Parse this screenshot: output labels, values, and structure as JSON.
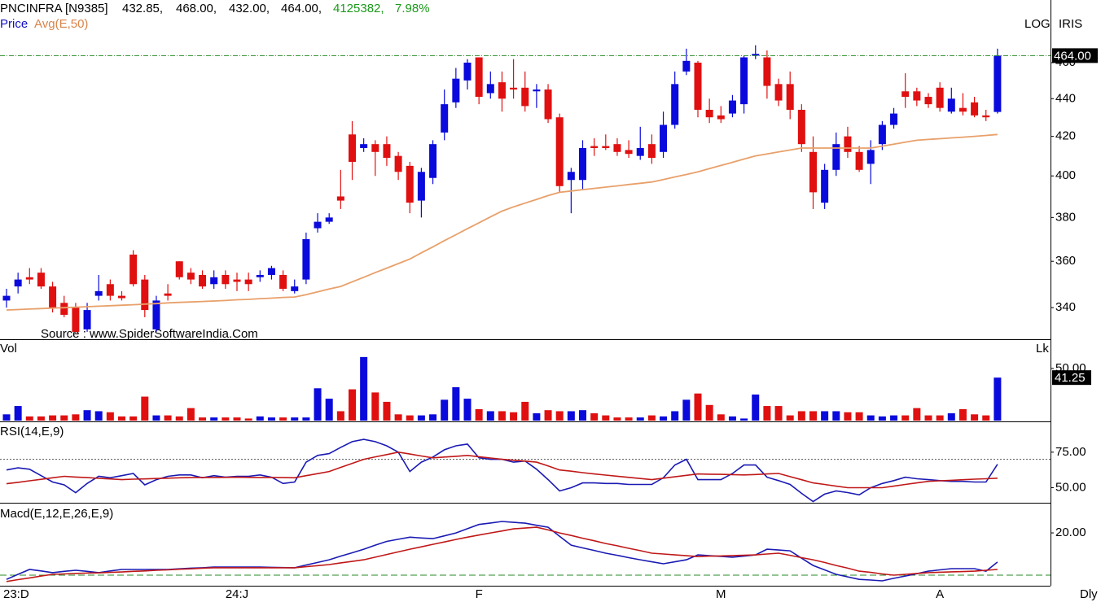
{
  "chart_data": [
    {
      "type": "candlestick",
      "title": "PNCINFRA [N9385]",
      "quote": [
        "432.85,",
        "468.00,",
        "432.00,",
        "464.00,",
        "4125382,",
        "7.98%"
      ],
      "series_label": "Price",
      "scale_label": "LOG",
      "theme_label": "IRIS",
      "period": "Dly",
      "annotation": "Source : www.SpiderSoftwareIndia.Com",
      "log": true,
      "up_color": "#0a0adc",
      "down_color": "#e01010",
      "categories": [
        "23:D",
        null,
        null,
        null,
        null,
        null,
        null,
        null,
        null,
        null,
        null,
        null,
        null,
        null,
        null,
        null,
        null,
        null,
        null,
        null,
        "24:J",
        null,
        null,
        null,
        null,
        null,
        null,
        null,
        null,
        null,
        null,
        null,
        null,
        null,
        null,
        null,
        null,
        null,
        null,
        null,
        null,
        "F",
        null,
        null,
        null,
        null,
        null,
        null,
        null,
        null,
        null,
        null,
        null,
        null,
        null,
        null,
        null,
        null,
        null,
        null,
        null,
        null,
        "M",
        null,
        null,
        null,
        null,
        null,
        null,
        null,
        null,
        null,
        null,
        null,
        null,
        null,
        null,
        null,
        null,
        null,
        null,
        "A",
        null,
        null,
        null,
        null,
        null
      ],
      "open": [
        343,
        349,
        353,
        355,
        349,
        342,
        340,
        331,
        345,
        350,
        345,
        363,
        352,
        331,
        346,
        360,
        355,
        354,
        350,
        354,
        352,
        352,
        353,
        354,
        354,
        347,
        352,
        375,
        378,
        390,
        421,
        414,
        416,
        416,
        410,
        405,
        388,
        399,
        422,
        438,
        450,
        463,
        443,
        449,
        446,
        446,
        444,
        445,
        430,
        398,
        398,
        415,
        415,
        416,
        413,
        410,
        416,
        412,
        426,
        455,
        460,
        434,
        431,
        432,
        437,
        464,
        463,
        448,
        448,
        434,
        412,
        387,
        403,
        420,
        412,
        406,
        416,
        426,
        444,
        444,
        441,
        446,
        433,
        435,
        438,
        431,
        432.85
      ],
      "high": [
        348,
        355,
        357,
        357,
        351,
        345,
        342,
        342,
        354,
        352,
        347,
        365,
        354,
        345,
        350,
        360,
        357,
        356,
        356,
        356,
        355,
        355,
        356,
        358,
        356,
        352,
        373,
        382,
        382,
        403,
        428,
        419,
        418,
        420,
        412,
        407,
        404,
        418,
        445,
        457,
        462,
        463,
        455,
        455,
        462,
        455,
        448,
        448,
        432,
        404,
        418,
        419,
        421,
        419,
        418,
        425,
        421,
        433,
        455,
        468,
        461,
        440,
        436,
        442,
        464,
        470,
        467,
        451,
        455,
        437,
        420,
        406,
        422,
        425,
        415,
        418,
        428,
        435,
        454,
        446,
        443,
        449,
        446,
        443,
        441,
        434,
        468
      ],
      "low": [
        340,
        346,
        350,
        348,
        338,
        336,
        329,
        330,
        343,
        343,
        343,
        349,
        336,
        330,
        343,
        352,
        350,
        348,
        348,
        348,
        347,
        347,
        351,
        352,
        347,
        346,
        350,
        373,
        377,
        384,
        398,
        412,
        400,
        405,
        398,
        382,
        380,
        396,
        418,
        435,
        445,
        437,
        440,
        433,
        440,
        433,
        435,
        427,
        392,
        382,
        393,
        410,
        413,
        410,
        409,
        408,
        406,
        409,
        424,
        453,
        430,
        427,
        427,
        430,
        432,
        462,
        440,
        436,
        429,
        412,
        384,
        384,
        400,
        409,
        402,
        396,
        413,
        424,
        435,
        436,
        435,
        433,
        432,
        431,
        430,
        428,
        432
      ],
      "close": [
        345,
        352,
        352,
        349,
        340,
        337,
        330,
        339,
        347,
        345,
        344,
        350,
        339,
        343,
        345,
        353,
        352,
        349,
        353,
        350,
        351,
        350,
        354,
        357,
        348,
        349,
        370,
        378,
        380,
        388,
        407,
        416,
        412,
        409,
        402,
        387,
        402,
        416,
        437,
        451,
        460,
        441,
        448,
        440,
        445,
        436,
        445,
        429,
        395,
        402,
        414,
        414,
        414,
        412,
        411,
        414,
        409,
        426,
        448,
        461,
        434,
        430,
        429,
        439,
        463,
        465,
        447,
        439,
        434,
        416,
        392,
        403,
        416,
        412,
        403,
        413,
        426,
        432,
        441,
        439,
        437,
        435,
        440,
        433,
        431,
        430,
        464
      ],
      "overlays": [
        {
          "name": "Avg(E,50)",
          "color": "#e8a06a",
          "values": [
            339,
            339.2,
            339.4,
            339.6,
            339.8,
            340,
            340.2,
            340.4,
            340.6,
            340.8,
            341,
            341.2,
            341.5,
            341.7,
            342,
            342.2,
            342.4,
            342.6,
            342.8,
            343,
            343.3,
            343.5,
            343.8,
            344,
            344.3,
            344.5,
            345.5,
            346.7,
            347.9,
            349,
            351,
            353,
            355,
            357,
            359,
            361,
            363.8,
            366.5,
            369.3,
            372,
            374.8,
            377.5,
            380.3,
            383,
            385,
            386.8,
            388.6,
            390.4,
            392,
            392.6,
            393.3,
            393.9,
            394.5,
            395.1,
            395.8,
            396.4,
            397,
            398.2,
            399.5,
            400.7,
            402,
            403.6,
            405.2,
            406.8,
            408.4,
            410,
            411,
            412,
            413,
            414,
            414,
            414,
            414,
            414,
            414,
            414,
            415,
            416,
            417,
            418,
            418.4,
            418.8,
            419.2,
            419.6,
            420,
            420.5,
            421
          ]
        }
      ],
      "reference": {
        "value": 464,
        "label": "464.00"
      },
      "ylim": [
        327,
        492
      ],
      "yticks": [
        340,
        360,
        380,
        400,
        420,
        440,
        460
      ]
    },
    {
      "type": "bar",
      "title": "Vol",
      "unit_label": "Lk",
      "values": [
        6,
        14,
        4,
        4,
        5,
        5,
        6,
        10,
        9,
        8,
        4,
        4,
        23,
        5,
        5,
        4,
        12,
        3,
        3,
        3,
        3,
        2,
        4,
        3,
        3,
        3,
        3,
        31,
        21,
        9,
        30,
        61,
        27,
        18,
        6,
        5,
        5,
        6,
        20,
        32,
        21,
        11,
        9,
        9,
        8,
        18,
        7,
        10,
        9,
        9,
        10,
        7,
        5,
        3,
        3,
        3,
        5,
        4,
        9,
        20,
        26,
        15,
        6,
        4,
        2,
        25,
        14,
        14,
        5,
        9,
        9,
        9,
        9,
        8,
        8,
        5,
        4,
        5,
        5,
        12,
        5,
        5,
        7,
        11,
        6,
        5,
        41.25
      ],
      "last_label": "41.25",
      "ylim": [
        0,
        76.5
      ],
      "yticks": [
        {
          "value": 50,
          "label": "50.00"
        }
      ]
    },
    {
      "type": "line",
      "title": "RSI(14,E,9)",
      "series": [
        {
          "color": "#1a1ab4",
          "values": [
            62.5,
            64,
            63,
            58.5,
            54,
            52,
            46.5,
            53,
            58,
            57,
            58.5,
            60,
            52,
            55.7,
            58,
            59,
            59,
            57,
            58.5,
            57.4,
            58,
            58,
            59,
            57.4,
            53,
            54,
            68,
            72.7,
            74,
            78.4,
            82.4,
            84,
            82.4,
            79.5,
            75,
            61.4,
            68,
            71.6,
            76.7,
            79.5,
            80.7,
            71,
            70,
            70,
            68,
            68.8,
            63,
            55.7,
            47.7,
            50,
            53.4,
            53.4,
            53,
            53,
            52.3,
            52.3,
            52.3,
            57,
            66,
            70,
            55.7,
            55.7,
            55.7,
            60,
            66,
            66,
            57.4,
            55,
            52.3,
            46,
            40.3,
            45.5,
            47.7,
            46.6,
            45,
            50,
            53,
            55,
            57.4,
            56.3,
            55.7,
            55,
            54.5,
            54.5,
            54,
            54,
            66.5
          ]
        },
        {
          "color": "#c01818",
          "values": [
            52.8,
            53.8,
            54.9,
            55.9,
            57,
            58,
            57.5,
            57.1,
            56.6,
            56.2,
            55.7,
            56,
            56.2,
            56.5,
            56.7,
            57,
            57.1,
            57.2,
            57.2,
            57.3,
            57.4,
            57.3,
            57.2,
            57.2,
            57.1,
            57,
            58.5,
            59.9,
            61.4,
            64.3,
            67.1,
            70,
            71.7,
            73.3,
            75,
            73.7,
            72.3,
            71,
            71.6,
            72.1,
            72.7,
            71.8,
            70.9,
            70,
            69.3,
            68.7,
            68,
            65.3,
            62.5,
            61.6,
            60.6,
            59.7,
            58.9,
            58.1,
            57.3,
            56.5,
            55.7,
            56.7,
            57.7,
            58.7,
            59.7,
            59.5,
            59.4,
            59.2,
            59,
            59.3,
            59.7,
            60,
            57.8,
            55.6,
            53.4,
            52.3,
            51.1,
            50,
            50,
            50,
            50,
            51.1,
            52.3,
            53.4,
            54.5,
            54.9,
            55.2,
            55.6,
            56,
            56.3,
            56.7
          ]
        }
      ],
      "reference": 70,
      "ylim": [
        40,
        95.5
      ],
      "yticks": [
        {
          "value": 75,
          "label": "75.00"
        },
        {
          "value": 50,
          "label": "50.00"
        }
      ]
    },
    {
      "type": "line",
      "title": "Macd(E,12,E,26,E,9)",
      "series": [
        {
          "color": "#1a1ab4",
          "values": [
            -2,
            0.4,
            2.7,
            2,
            1.2,
            1.8,
            2.3,
            1.8,
            1.2,
            2,
            2.7,
            2.7,
            2.7,
            2.7,
            2.7,
            3,
            3.3,
            3.5,
            3.8,
            3.8,
            3.8,
            3.8,
            3.8,
            3.7,
            3.6,
            3.5,
            4.8,
            6,
            7.3,
            9,
            10.6,
            12.3,
            14.2,
            16,
            17,
            18,
            17.6,
            17.3,
            18.6,
            20,
            22,
            24,
            24.7,
            25.4,
            25,
            24.6,
            23.6,
            22.7,
            18.4,
            14.2,
            12.9,
            11.7,
            10.4,
            9.4,
            8.3,
            7.3,
            6.3,
            5.4,
            6.3,
            7.3,
            9.6,
            9.2,
            8.9,
            8.5,
            9,
            9.6,
            12.3,
            11.9,
            11.5,
            8,
            4.6,
            2.5,
            0.4,
            -0.8,
            -2,
            -2.3,
            -2.7,
            -1.5,
            -0.4,
            0.7,
            1.9,
            2.5,
            3.1,
            3.1,
            3.1,
            1.9,
            6.2
          ]
        },
        {
          "color": "#c01818",
          "values": [
            -3,
            -2.1,
            -1.3,
            -0.4,
            0.4,
            0.6,
            0.8,
            1,
            1.1,
            1.3,
            1.5,
            1.8,
            2,
            2.3,
            2.5,
            2.8,
            3,
            3.3,
            3.5,
            3.5,
            3.5,
            3.5,
            3.5,
            3.5,
            3.5,
            3.5,
            4,
            4.5,
            5,
            5.8,
            6.5,
            7.3,
            8.5,
            9.8,
            11,
            12.3,
            13.4,
            14.6,
            15.7,
            16.9,
            18,
            19,
            20,
            20.9,
            21.9,
            22.3,
            22.7,
            21.4,
            20,
            18.8,
            17.5,
            16.3,
            15,
            13.9,
            12.7,
            11.6,
            10.4,
            10,
            9.6,
            9.2,
            8.8,
            9,
            9.1,
            9.3,
            9.4,
            9.6,
            10,
            10.4,
            9.4,
            8.3,
            7.3,
            6,
            4.6,
            3.3,
            1.9,
            1.3,
            0.6,
            0,
            0.4,
            0.8,
            1.2,
            1.4,
            1.6,
            1.7,
            1.9,
            2.3,
            2.7
          ]
        }
      ],
      "reference": 0,
      "ylim": [
        -5,
        33.5
      ],
      "yticks": [
        {
          "value": 20,
          "label": "20.00"
        }
      ]
    }
  ]
}
